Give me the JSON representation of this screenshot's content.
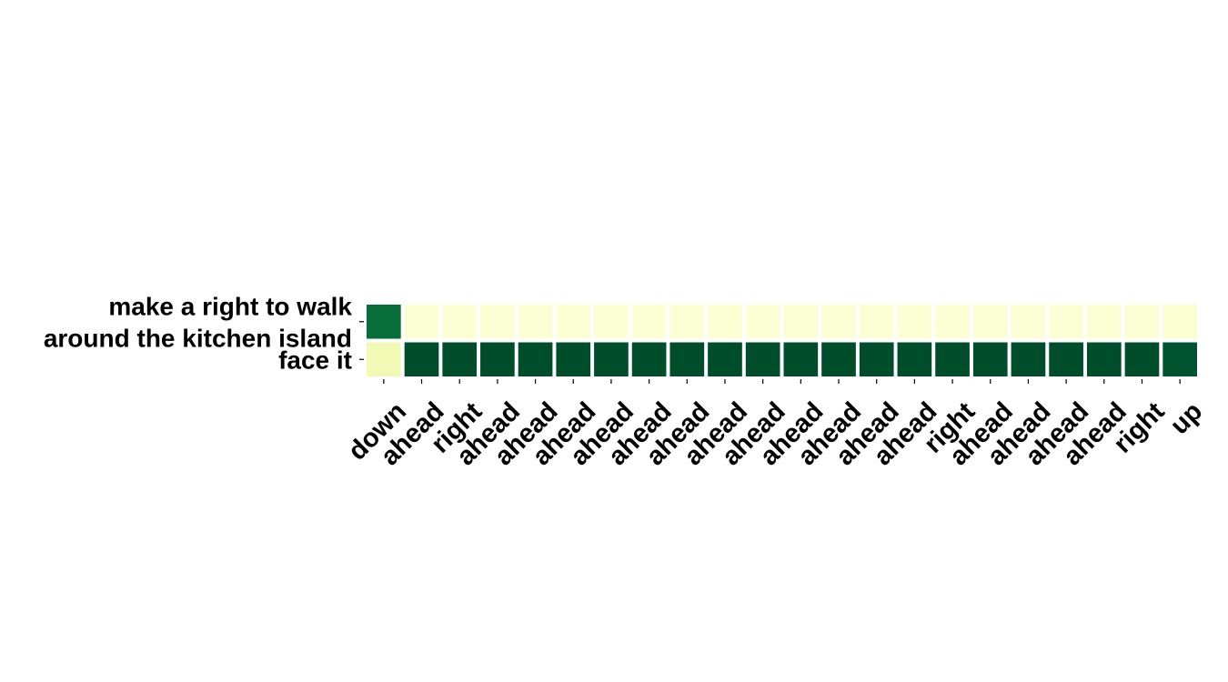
{
  "chart_data": {
    "type": "heatmap",
    "rows": [
      [
        "make a right to walk",
        "around the kitchen island"
      ],
      [
        "face it"
      ]
    ],
    "columns": [
      "down",
      "ahead",
      "right",
      "ahead",
      "ahead",
      "ahead",
      "ahead",
      "ahead",
      "ahead",
      "ahead",
      "ahead",
      "ahead",
      "ahead",
      "ahead",
      "ahead",
      "right",
      "ahead",
      "ahead",
      "ahead",
      "ahead",
      "right",
      "up"
    ],
    "values": [
      [
        0.85,
        0.05,
        0.05,
        0.05,
        0.05,
        0.05,
        0.05,
        0.05,
        0.05,
        0.05,
        0.05,
        0.05,
        0.05,
        0.05,
        0.05,
        0.05,
        0.05,
        0.05,
        0.05,
        0.05,
        0.05,
        0.06
      ],
      [
        0.15,
        0.97,
        0.97,
        0.97,
        0.97,
        0.97,
        0.97,
        0.97,
        0.97,
        0.97,
        0.97,
        0.97,
        0.97,
        0.97,
        0.97,
        0.97,
        0.97,
        0.97,
        0.97,
        0.97,
        0.97,
        0.95
      ]
    ],
    "colormap": "YlGn",
    "color_range": [
      0,
      1
    ],
    "colorbar": false,
    "grid_line_color": "#ffffff"
  }
}
